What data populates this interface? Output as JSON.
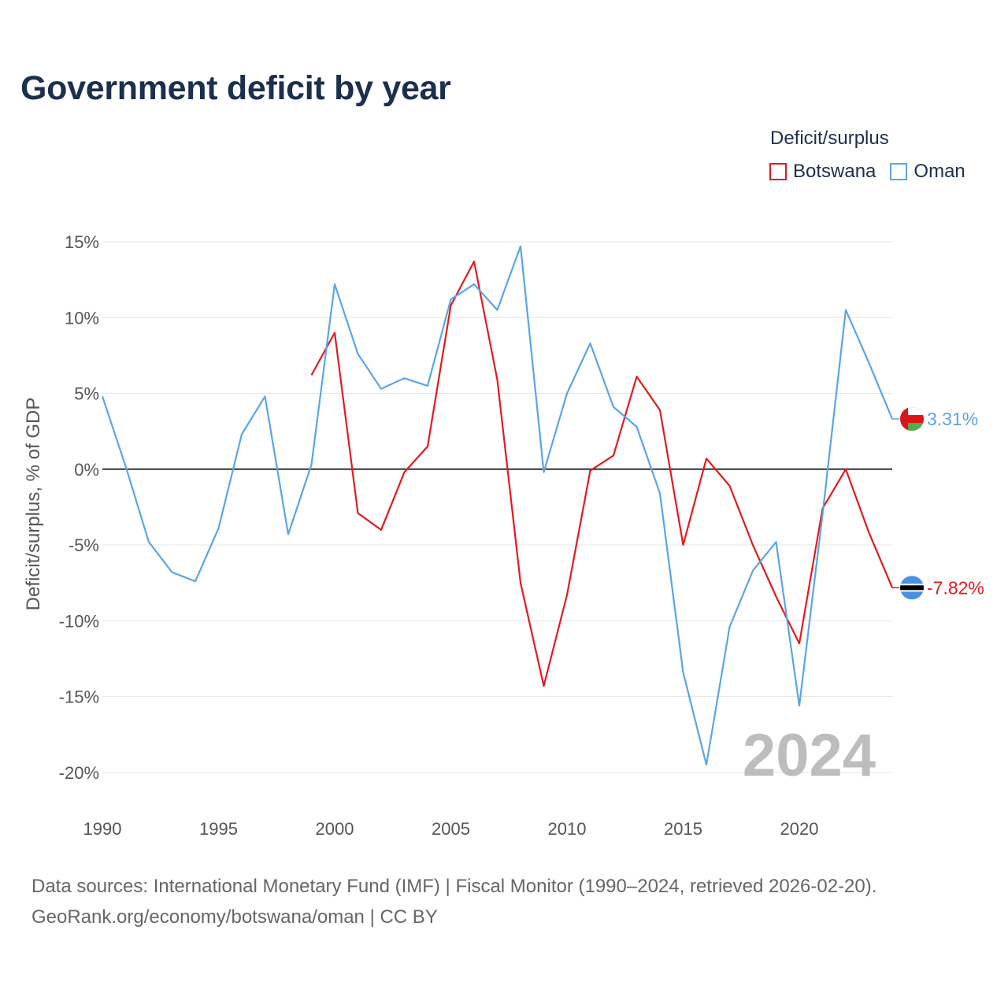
{
  "chart_data": {
    "type": "line",
    "title": "Government deficit by year",
    "legend_title": "Deficit/surplus",
    "legend_position": "top-right",
    "ylabel": "Deficit/surplus, % of GDP",
    "xlabel": "",
    "xlim": [
      1990,
      2024
    ],
    "ylim": [
      -21.5,
      16.5
    ],
    "y_ticks": [
      15,
      10,
      5,
      0,
      -5,
      -10,
      -15,
      -20
    ],
    "y_tick_labels": [
      "15%",
      "10%",
      "5%",
      "0%",
      "-5%",
      "-10%",
      "-15%",
      "-20%"
    ],
    "x_ticks": [
      1990,
      1995,
      2000,
      2005,
      2010,
      2015,
      2020
    ],
    "x_tick_labels": [
      "1990",
      "1995",
      "2000",
      "2005",
      "2010",
      "2015",
      "2020"
    ],
    "grid": true,
    "watermark_year": "2024",
    "series": [
      {
        "name": "Botswana",
        "color": "#e41a1c",
        "x": [
          1999,
          2000,
          2001,
          2002,
          2003,
          2004,
          2005,
          2006,
          2007,
          2008,
          2009,
          2010,
          2011,
          2012,
          2013,
          2014,
          2015,
          2016,
          2017,
          2018,
          2019,
          2020,
          2021,
          2022,
          2023,
          2024
        ],
        "values": [
          6.2,
          9.0,
          -2.9,
          -4.0,
          -0.2,
          1.5,
          10.8,
          13.7,
          5.9,
          -7.5,
          -14.3,
          -8.3,
          -0.1,
          0.9,
          6.1,
          3.9,
          -5.0,
          0.7,
          -1.1,
          -5.0,
          -8.4,
          -11.5,
          -2.6,
          0.0,
          -4.2,
          -7.82
        ],
        "end_label": "-7.82%"
      },
      {
        "name": "Oman",
        "color": "#5aa6e6",
        "x": [
          1990,
          1991,
          1992,
          1993,
          1994,
          1995,
          1996,
          1997,
          1998,
          1999,
          2000,
          2001,
          2002,
          2003,
          2004,
          2005,
          2006,
          2007,
          2008,
          2009,
          2010,
          2011,
          2012,
          2013,
          2014,
          2015,
          2016,
          2017,
          2018,
          2019,
          2020,
          2021,
          2022,
          2023,
          2024
        ],
        "values": [
          4.8,
          0.2,
          -4.8,
          -6.8,
          -7.4,
          -3.9,
          2.3,
          4.8,
          -4.3,
          0.3,
          12.2,
          7.6,
          5.3,
          6.0,
          5.5,
          11.2,
          12.2,
          10.5,
          14.7,
          -0.2,
          5.0,
          8.3,
          4.1,
          2.8,
          -1.6,
          -13.4,
          -19.5,
          -10.4,
          -6.7,
          -4.8,
          -15.6,
          -3.0,
          10.5,
          7.0,
          3.31
        ],
        "end_label": "3.31%"
      }
    ]
  },
  "source": {
    "line1": "Data sources: International Monetary Fund (IMF) | Fiscal Monitor (1990–2024, retrieved 2026-02-20).",
    "line2": "GeoRank.org/economy/botswana/oman | CC BY"
  },
  "flags": {
    "botswana": {
      "blue": "#4a90e2",
      "black": "#000000",
      "white": "#ffffff"
    },
    "oman": {
      "red": "#db161b",
      "white": "#ffffff",
      "green": "#4caf50"
    }
  }
}
